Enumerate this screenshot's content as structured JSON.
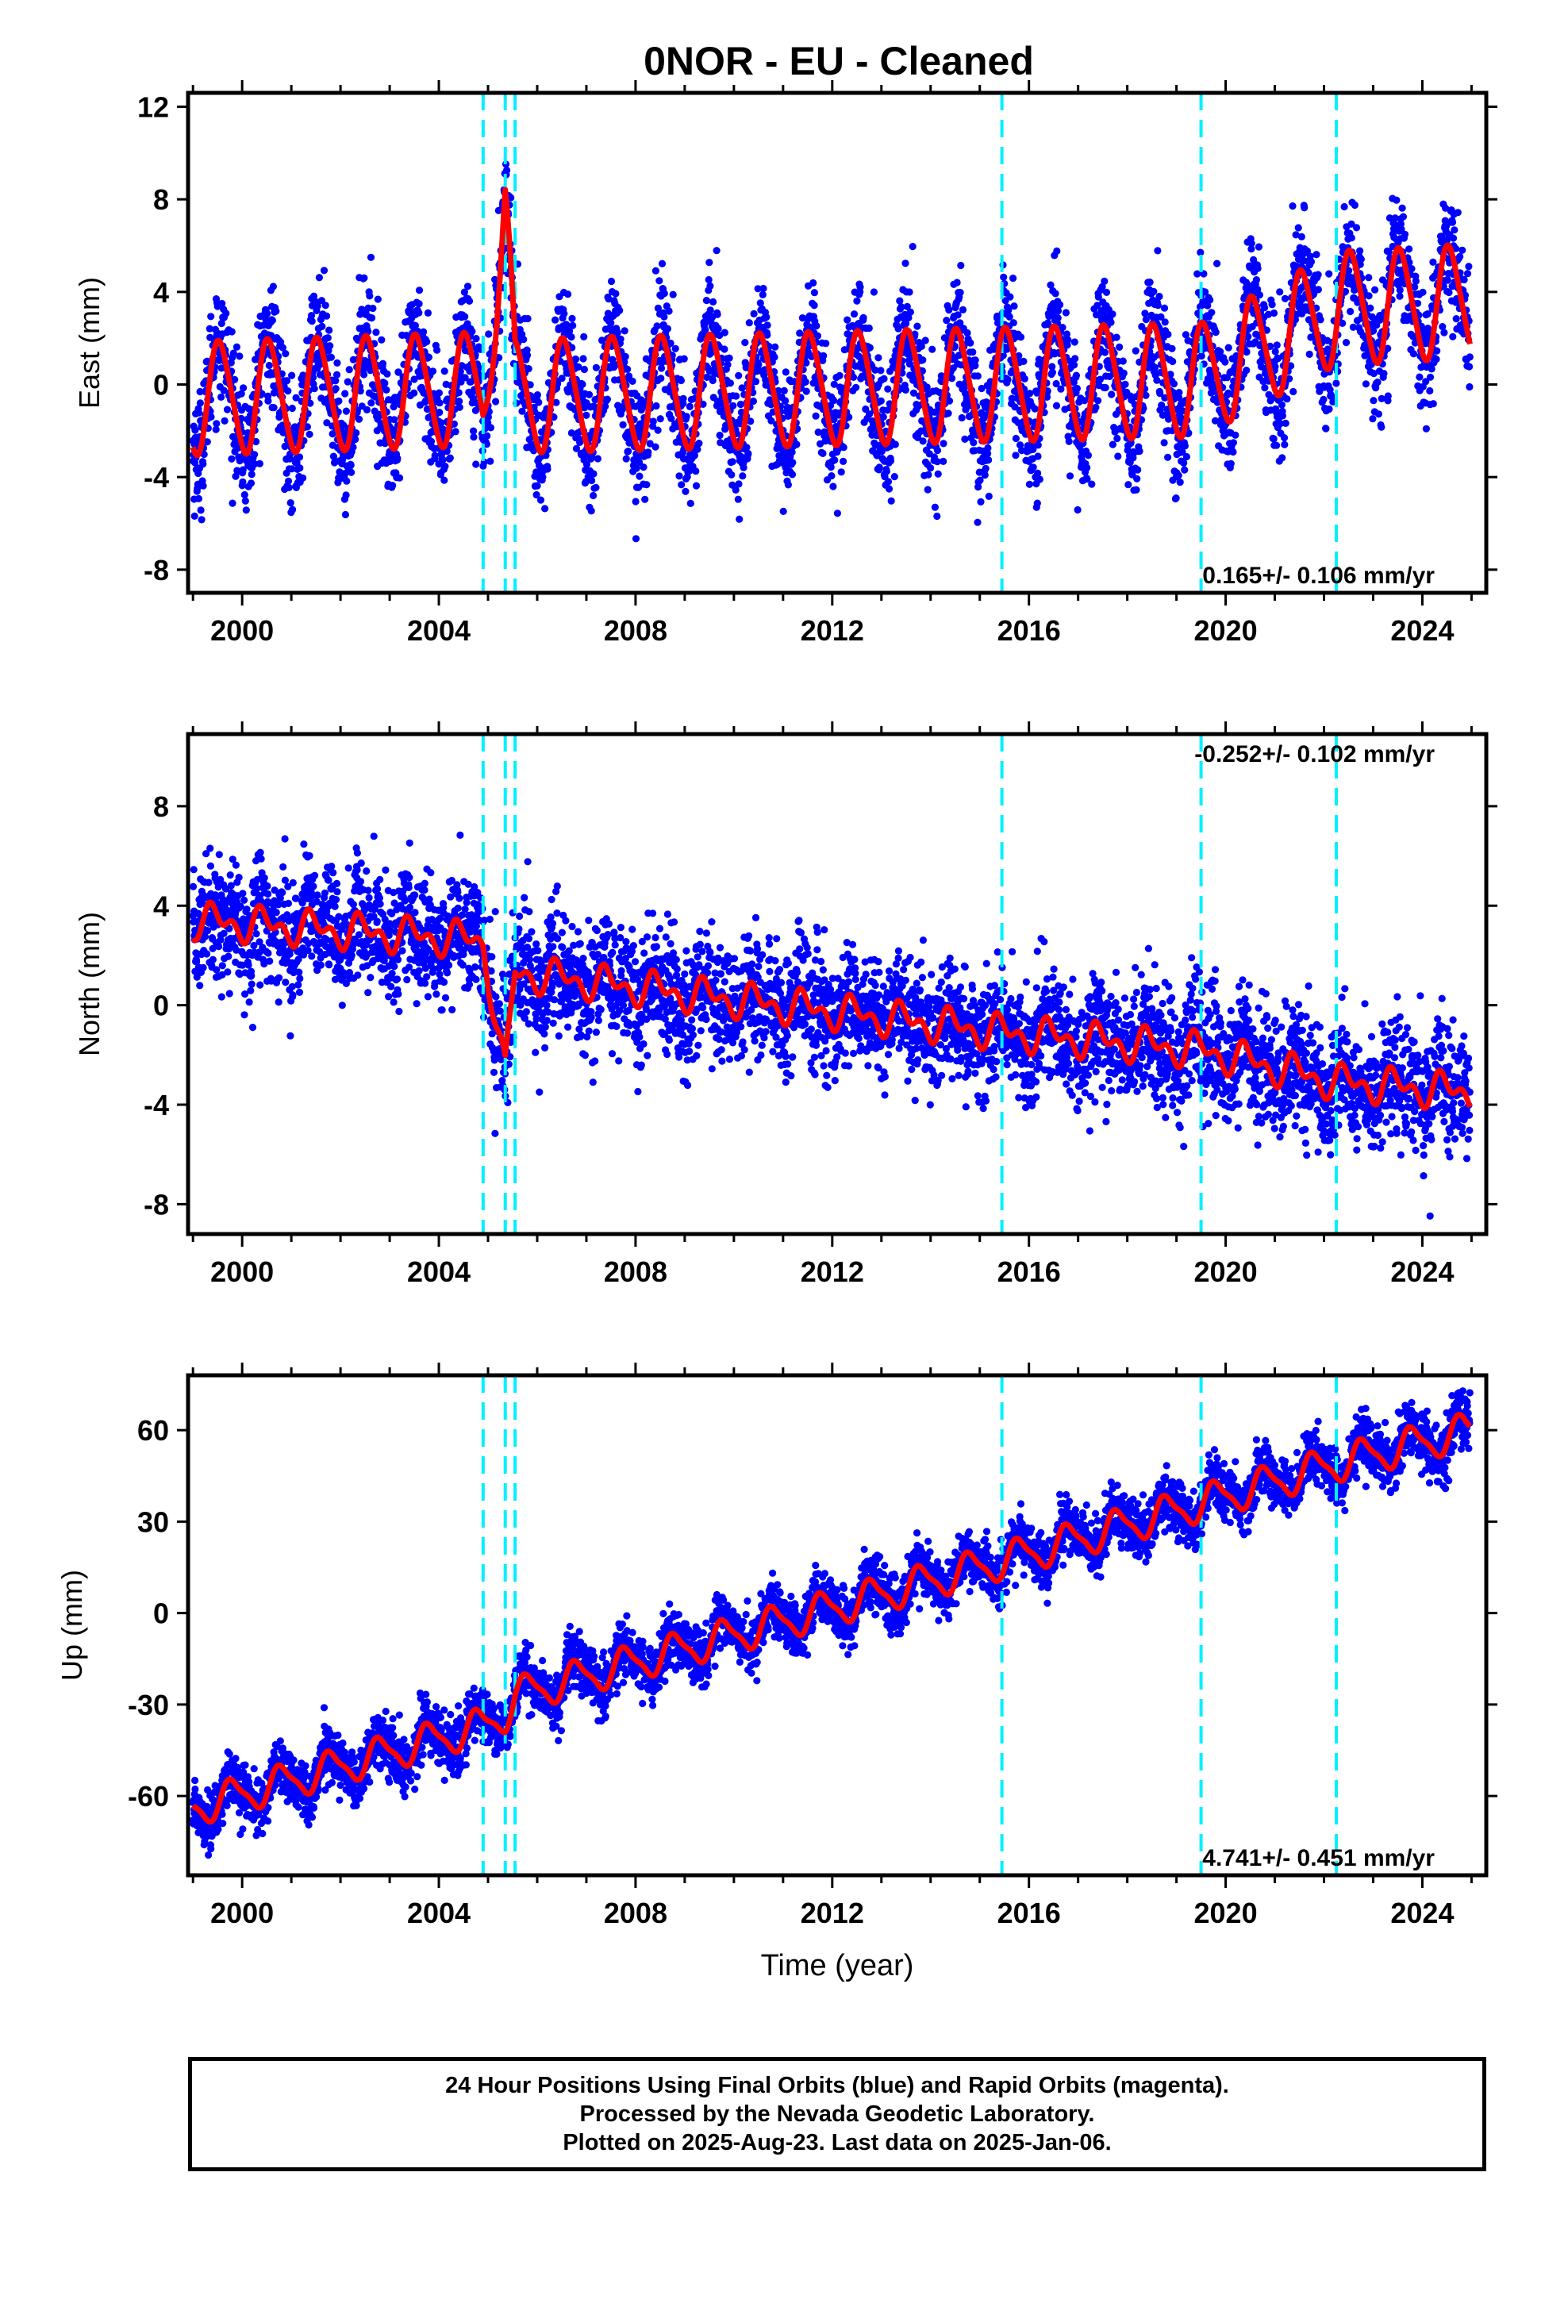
{
  "title": "0NOR  - EU - Cleaned",
  "chart_data": [
    {
      "type": "scatter",
      "ylabel": "East (mm)",
      "xlabel": "",
      "xlim": [
        1998.9,
        2025.3
      ],
      "ylim": [
        -9,
        12.6
      ],
      "yticks": [
        12,
        8,
        4,
        0,
        -4,
        -8
      ],
      "xticks": [
        2000,
        2004,
        2008,
        2012,
        2016,
        2020,
        2024
      ],
      "rate_label": "0.165+/- 0.106 mm/yr",
      "rate_label_position": "bottom-right",
      "offsets": [
        2004.9,
        2005.35,
        2005.55,
        2015.45,
        2019.5,
        2022.25
      ],
      "series": [
        {
          "role": "observed",
          "color": "#0000ff",
          "model": {
            "x": [
              1999.0,
              2004.9,
              2005.35,
              2005.55,
              2015.45,
              2019.5,
              2022.25,
              2025.0
            ],
            "y": [
              -0.6,
              -0.2,
              7.5,
              -0.5,
              0.0,
              0.2,
              3.3,
              3.6
            ],
            "amp": 2.4,
            "phase": 1999.3,
            "semi": 0.3,
            "noise": 1.3
          }
        },
        {
          "role": "model",
          "color": "#ff0000",
          "model": {
            "x": [
              1999.0,
              2004.9,
              2005.35,
              2005.55,
              2015.45,
              2019.5,
              2022.25,
              2025.0
            ],
            "y": [
              -0.6,
              -0.2,
              7.5,
              -0.5,
              0.0,
              0.2,
              3.3,
              3.6
            ],
            "amp": 2.4,
            "phase": 1999.3,
            "semi": 0.3
          }
        }
      ]
    },
    {
      "type": "scatter",
      "ylabel": "North (mm)",
      "xlabel": "",
      "xlim": [
        1998.9,
        2025.3
      ],
      "ylim": [
        -9.2,
        10.9
      ],
      "yticks": [
        8,
        4,
        0,
        -4,
        -8
      ],
      "xticks": [
        2000,
        2004,
        2008,
        2012,
        2016,
        2020,
        2024
      ],
      "rate_label": "-0.252+/- 0.102 mm/yr",
      "rate_label_position": "top-right",
      "offsets": [
        2004.9,
        2005.35,
        2005.55,
        2015.45,
        2019.5,
        2022.25
      ],
      "series": [
        {
          "role": "observed",
          "color": "#0000ff",
          "model": {
            "x": [
              1999.0,
              2004.9,
              2005.35,
              2005.55,
              2015.45,
              2019.5,
              2022.25,
              2025.0
            ],
            "y": [
              3.4,
              2.6,
              -2.8,
              1.3,
              -1.1,
              -1.8,
              -3.1,
              -3.5
            ],
            "amp": 0.5,
            "phase": 1999.2,
            "semi": 0.4,
            "noise": 1.2
          }
        },
        {
          "role": "model",
          "color": "#ff0000",
          "model": {
            "x": [
              1999.0,
              2004.9,
              2005.35,
              2005.55,
              2015.45,
              2019.5,
              2022.25,
              2025.0
            ],
            "y": [
              3.4,
              2.6,
              -2.8,
              1.3,
              -1.1,
              -1.8,
              -3.1,
              -3.5
            ],
            "amp": 0.5,
            "phase": 1999.2,
            "semi": 0.4
          }
        }
      ]
    },
    {
      "type": "scatter",
      "ylabel": "Up (mm)",
      "xlabel": "Time (year)",
      "xlim": [
        1998.9,
        2025.3
      ],
      "ylim": [
        -86,
        78
      ],
      "yticks": [
        60,
        30,
        0,
        -30,
        -60
      ],
      "xticks": [
        2000,
        2004,
        2008,
        2012,
        2016,
        2020,
        2024
      ],
      "rate_label": "4.741+/- 0.451 mm/yr",
      "rate_label_position": "bottom-right",
      "offsets": [
        2004.9,
        2005.35,
        2005.55,
        2015.45,
        2019.5,
        2022.25
      ],
      "series": [
        {
          "role": "observed",
          "color": "#0000ff",
          "model": {
            "x": [
              1999.0,
              2004.9,
              2005.35,
              2005.55,
              2015.45,
              2019.5,
              2022.25,
              2025.0
            ],
            "y": [
              -64,
              -37,
              -33,
              -27,
              17,
              36,
              49,
              60
            ],
            "amp": 5.5,
            "phase": 1999.55,
            "semi": 1.5,
            "noise": 4.5
          }
        },
        {
          "role": "model",
          "color": "#ff0000",
          "model": {
            "x": [
              1999.0,
              2004.9,
              2005.35,
              2005.55,
              2015.45,
              2019.5,
              2022.25,
              2025.0
            ],
            "y": [
              -64,
              -37,
              -33,
              -27,
              17,
              36,
              49,
              60
            ],
            "amp": 5.5,
            "phase": 1999.55,
            "semi": 1.5
          }
        }
      ]
    }
  ],
  "caption": [
    "24 Hour Positions Using Final Orbits (blue) and Rapid Orbits (magenta).",
    "Processed by the Nevada Geodetic Laboratory.",
    "Plotted on 2025-Aug-23. Last data on 2025-Jan-06."
  ]
}
